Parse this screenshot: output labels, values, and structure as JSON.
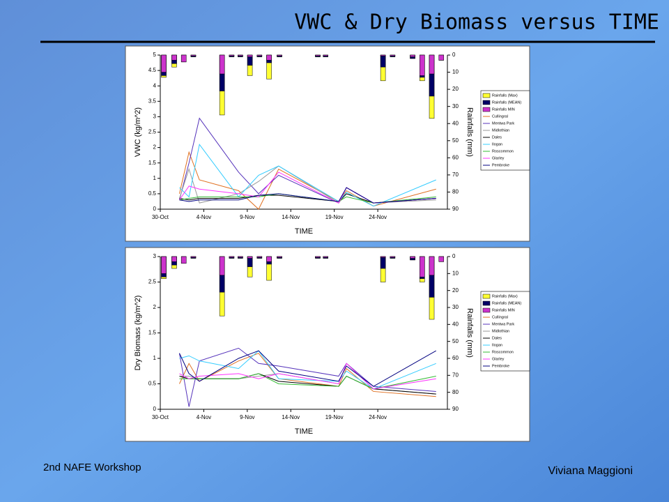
{
  "slide": {
    "title": "VWC & Dry Biomass versus TIME",
    "footer_left": "2nd NAFE Workshop",
    "footer_right": "Viviana Maggioni"
  },
  "chart_data": [
    {
      "type": "combo",
      "ylabel": "VWC (kg/m^2)",
      "y2label": "Rainfalls (mm)",
      "xlabel": "TIME",
      "legend": "right",
      "xlim": [
        0,
        33
      ],
      "xticks": [
        {
          "value": 0,
          "label": "30-Oct"
        },
        {
          "value": 5,
          "label": "4-Nov"
        },
        {
          "value": 10,
          "label": "9-Nov"
        },
        {
          "value": 15,
          "label": "14-Nov"
        },
        {
          "value": 20,
          "label": "19-Nov"
        },
        {
          "value": 25,
          "label": "24-Nov"
        }
      ],
      "ylim": [
        0,
        5
      ],
      "yticks": [
        0,
        0.5,
        1,
        1.5,
        2,
        2.5,
        3,
        3.5,
        4,
        4.5,
        5
      ],
      "y2lim": [
        0,
        90
      ],
      "y2ticks": [
        0,
        10,
        20,
        30,
        40,
        50,
        60,
        70,
        80,
        90
      ],
      "y2_inverted": true,
      "series": [
        {
          "name": "Rainfalls (Max)",
          "type": "bar",
          "axis": "y2",
          "color": "#ffff33",
          "x": [
            0.4,
            1.6,
            2.7,
            3.8,
            7.1,
            8.2,
            9.2,
            10.3,
            11.4,
            12.5,
            13.7,
            18.1,
            19,
            25.6,
            26.7,
            29,
            30.1,
            31.2,
            32.3
          ],
          "values": [
            13,
            7,
            4,
            1,
            35,
            1,
            1,
            12,
            1,
            14,
            1,
            1,
            1,
            15,
            1,
            2,
            15,
            37,
            3
          ]
        },
        {
          "name": "Rainfalls (MEAN)",
          "type": "bar",
          "axis": "y2",
          "color": "#000066",
          "x": [
            0.4,
            1.6,
            2.7,
            3.8,
            7.1,
            8.2,
            9.2,
            10.3,
            11.4,
            12.5,
            13.7,
            18.1,
            19,
            25.6,
            26.7,
            29,
            30.1,
            31.2,
            32.3
          ],
          "values": [
            12,
            5,
            4,
            1,
            21,
            1,
            1,
            6,
            1,
            4.5,
            1,
            1,
            1,
            7,
            1,
            2,
            13,
            24,
            3
          ]
        },
        {
          "name": "Rainfalls MIN",
          "type": "bar",
          "axis": "y2",
          "color": "#cc33cc",
          "x": [
            0.4,
            1.6,
            2.7,
            3.8,
            7.1,
            8.2,
            9.2,
            10.3,
            11.4,
            12.5,
            13.7,
            18.1,
            19,
            25.6,
            26.7,
            29,
            30.1,
            31.2,
            32.3
          ],
          "values": [
            10,
            3,
            4,
            0.5,
            11,
            0.5,
            0.5,
            1,
            0.5,
            3,
            0.5,
            0.5,
            0.5,
            0.5,
            0.5,
            1,
            12,
            11,
            3
          ]
        },
        {
          "name": "Cullingral",
          "type": "line",
          "color": "#e07020",
          "x": [
            2.2,
            3.3,
            4.5,
            9,
            11.3,
            13.6,
            20.5,
            21.4,
            24.5,
            31.7
          ],
          "values": [
            0.5,
            1.85,
            0.95,
            0.6,
            0,
            1.3,
            0.25,
            0.6,
            0.1,
            0.65
          ]
        },
        {
          "name": "Mentwa Park",
          "type": "line",
          "color": "#5533bb",
          "x": [
            2.2,
            3.3,
            4.5,
            9,
            11.3,
            13.6,
            20.5,
            21.4,
            24.5,
            31.7
          ],
          "values": [
            0.3,
            1.5,
            2.95,
            1.2,
            0.5,
            1.1,
            0.2,
            0.7,
            0.2,
            0.35
          ]
        },
        {
          "name": "Midlothian",
          "type": "line",
          "color": "#999999",
          "x": [
            2.2,
            3.3,
            4.5,
            9,
            11.3,
            13.6,
            20.5,
            21.4,
            24.5,
            31.7
          ],
          "values": [
            0.35,
            1.3,
            0.2,
            0.5,
            0.9,
            1.4,
            0.2,
            0.5,
            0.2,
            0.3
          ]
        },
        {
          "name": "Dales",
          "type": "line",
          "color": "#000000",
          "x": [
            2.2,
            3.3,
            4.5,
            9,
            11.3,
            13.6,
            20.5,
            21.4,
            24.5,
            31.7
          ],
          "values": [
            0.35,
            0.3,
            0.35,
            0.35,
            0.45,
            0.45,
            0.25,
            0.5,
            0.2,
            0.35
          ]
        },
        {
          "name": "Ilogan",
          "type": "line",
          "color": "#33ccff",
          "x": [
            2.2,
            3.3,
            4.5,
            9,
            11.3,
            13.6,
            20.5,
            21.4,
            24.5,
            31.7
          ],
          "values": [
            0.7,
            0.4,
            2.1,
            0.4,
            1.1,
            1.4,
            0.25,
            0.55,
            0.1,
            0.95
          ]
        },
        {
          "name": "Roscommon",
          "type": "line",
          "color": "#33bb33",
          "x": [
            2.2,
            3.3,
            4.5,
            9,
            11.3,
            13.6,
            20.5,
            21.4,
            24.5,
            31.7
          ],
          "values": [
            0.3,
            0.35,
            0.4,
            0.4,
            0.4,
            0.5,
            0.25,
            0.4,
            0.2,
            0.4
          ]
        },
        {
          "name": "Glarley",
          "type": "line",
          "color": "#ff33ff",
          "x": [
            2.2,
            3.3,
            4.5,
            9,
            11.3,
            13.6,
            20.5,
            21.4,
            24.5,
            31.7
          ],
          "values": [
            0.3,
            0.75,
            0.65,
            0.5,
            0.4,
            1.2,
            0.2,
            0.7,
            0.2,
            0.35
          ]
        },
        {
          "name": "Pembroke",
          "type": "line",
          "color": "#000080",
          "x": [
            2.2,
            3.3,
            4.5,
            9,
            11.3,
            13.6,
            20.5,
            21.4,
            24.5,
            31.7
          ],
          "values": [
            0.3,
            0.25,
            0.3,
            0.3,
            0.45,
            0.5,
            0.25,
            0.7,
            0.2,
            0.35
          ]
        }
      ]
    },
    {
      "type": "combo",
      "ylabel": "Dry Biomass (kg/m^2)",
      "y2label": "Rainfalls (mm)",
      "xlabel": "TIME",
      "legend": "right",
      "xlim": [
        0,
        33
      ],
      "xticks": [
        {
          "value": 0,
          "label": "30-Oct"
        },
        {
          "value": 5,
          "label": "4-Nov"
        },
        {
          "value": 10,
          "label": "9-Nov"
        },
        {
          "value": 15,
          "label": "14-Nov"
        },
        {
          "value": 20,
          "label": "19-Nov"
        },
        {
          "value": 25,
          "label": "24-Nov"
        }
      ],
      "ylim": [
        0,
        3
      ],
      "yticks": [
        0,
        0.5,
        1,
        1.5,
        2,
        2.5,
        3
      ],
      "y2lim": [
        0,
        90
      ],
      "y2ticks": [
        0,
        10,
        20,
        30,
        40,
        50,
        60,
        70,
        80,
        90
      ],
      "y2_inverted": true,
      "series": [
        {
          "name": "Rainfalls (Max)",
          "type": "bar",
          "axis": "y2",
          "color": "#ffff33",
          "x": [
            0.4,
            1.6,
            2.7,
            3.8,
            7.1,
            8.2,
            9.2,
            10.3,
            11.4,
            12.5,
            13.7,
            18.1,
            19,
            25.6,
            26.7,
            29,
            30.1,
            31.2,
            32.3
          ],
          "values": [
            13,
            7,
            4,
            1,
            35,
            1,
            1,
            12,
            1,
            14,
            1,
            1,
            1,
            15,
            1,
            2,
            15,
            37,
            3
          ]
        },
        {
          "name": "Rainfalls (MEAN)",
          "type": "bar",
          "axis": "y2",
          "color": "#000066",
          "x": [
            0.4,
            1.6,
            2.7,
            3.8,
            7.1,
            8.2,
            9.2,
            10.3,
            11.4,
            12.5,
            13.7,
            18.1,
            19,
            25.6,
            26.7,
            29,
            30.1,
            31.2,
            32.3
          ],
          "values": [
            12,
            5,
            4,
            1,
            21,
            1,
            1,
            6,
            1,
            4.5,
            1,
            1,
            1,
            7,
            1,
            2,
            13,
            24,
            3
          ]
        },
        {
          "name": "Rainfalls MIN",
          "type": "bar",
          "axis": "y2",
          "color": "#cc33cc",
          "x": [
            0.4,
            1.6,
            2.7,
            3.8,
            7.1,
            8.2,
            9.2,
            10.3,
            11.4,
            12.5,
            13.7,
            18.1,
            19,
            25.6,
            26.7,
            29,
            30.1,
            31.2,
            32.3
          ],
          "values": [
            10,
            3,
            4,
            0.5,
            11,
            0.5,
            0.5,
            1,
            0.5,
            3,
            0.5,
            0.5,
            0.5,
            0.5,
            0.5,
            1,
            12,
            11,
            3
          ]
        },
        {
          "name": "Cullingral",
          "type": "line",
          "color": "#e07020",
          "x": [
            2.2,
            3.3,
            4.5,
            9,
            11.3,
            13.6,
            20.5,
            21.4,
            24.5,
            31.7
          ],
          "values": [
            0.5,
            0.9,
            0.55,
            0.95,
            1.1,
            0.6,
            0.45,
            0.8,
            0.35,
            0.25
          ]
        },
        {
          "name": "Mentwa Park",
          "type": "line",
          "color": "#5533bb",
          "x": [
            2.2,
            3.3,
            4.5,
            9,
            11.3,
            13.6,
            20.5,
            21.4,
            24.5,
            31.7
          ],
          "values": [
            1.1,
            0.05,
            0.95,
            1.2,
            0.9,
            0.85,
            0.65,
            0.9,
            0.45,
            0.35
          ]
        },
        {
          "name": "Midlothian",
          "type": "line",
          "color": "#999999",
          "x": [
            2.2,
            3.3,
            4.5,
            9,
            11.3,
            13.6,
            20.5,
            21.4,
            24.5,
            31.7
          ],
          "values": [
            0.65,
            0.65,
            0.6,
            0.6,
            0.65,
            0.7,
            0.5,
            0.9,
            0.4,
            0.3
          ]
        },
        {
          "name": "Dales",
          "type": "line",
          "color": "#000000",
          "x": [
            2.2,
            3.3,
            4.5,
            9,
            11.3,
            13.6,
            20.5,
            21.4,
            24.5,
            31.7
          ],
          "values": [
            0.65,
            0.6,
            0.6,
            0.6,
            0.7,
            0.55,
            0.45,
            0.65,
            0.4,
            0.3
          ]
        },
        {
          "name": "Ilogan",
          "type": "line",
          "color": "#33ccff",
          "x": [
            2.2,
            3.3,
            4.5,
            9,
            11.3,
            13.6,
            20.5,
            21.4,
            24.5,
            31.7
          ],
          "values": [
            1,
            1.05,
            0.95,
            0.8,
            1.15,
            0.6,
            0.55,
            0.75,
            0.4,
            0.9
          ]
        },
        {
          "name": "Roscommon",
          "type": "line",
          "color": "#33bb33",
          "x": [
            2.2,
            3.3,
            4.5,
            9,
            11.3,
            13.6,
            20.5,
            21.4,
            24.5,
            31.7
          ],
          "values": [
            0.6,
            0.6,
            0.6,
            0.6,
            0.7,
            0.5,
            0.45,
            0.65,
            0.4,
            0.65
          ]
        },
        {
          "name": "Glarley",
          "type": "line",
          "color": "#ff33ff",
          "x": [
            2.2,
            3.3,
            4.5,
            9,
            11.3,
            13.6,
            20.5,
            21.4,
            24.5,
            31.7
          ],
          "values": [
            0.7,
            0.6,
            0.65,
            0.7,
            0.6,
            0.7,
            0.5,
            0.9,
            0.4,
            0.6
          ]
        },
        {
          "name": "Pembroke",
          "type": "line",
          "color": "#000080",
          "x": [
            2.2,
            3.3,
            4.5,
            9,
            11.3,
            13.6,
            20.5,
            21.4,
            24.5,
            31.7
          ],
          "values": [
            1.1,
            0.7,
            0.55,
            1,
            1.15,
            0.75,
            0.55,
            0.85,
            0.45,
            1.15
          ]
        }
      ]
    }
  ]
}
